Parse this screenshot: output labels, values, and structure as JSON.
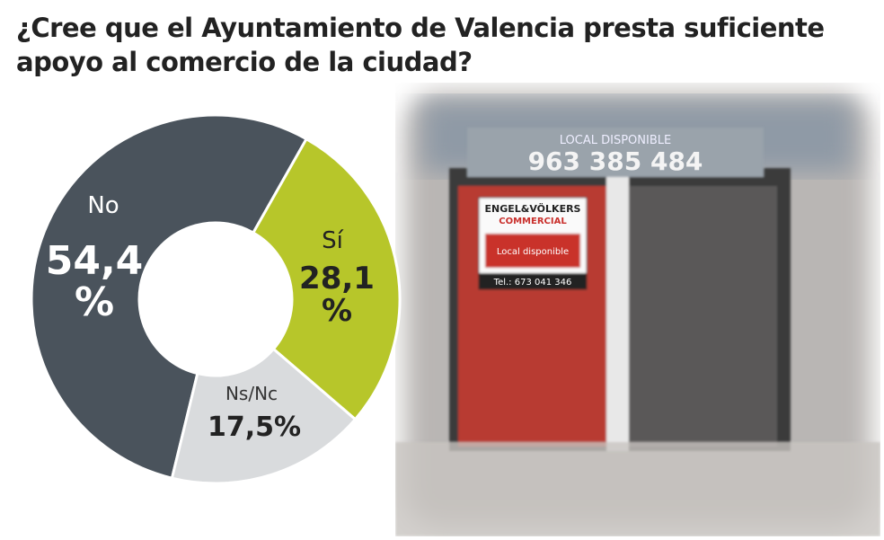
{
  "chart_data": {
    "type": "pie",
    "donut": true,
    "title": "¿Cree que el Ayuntamiento de Valencia presta suficiente apoyo al comercio de la ciudad?",
    "categories": [
      "No",
      "Sí",
      "Ns/Nc"
    ],
    "values": [
      54.4,
      28.1,
      17.5
    ],
    "value_labels": [
      "54,4 %",
      "28,1 %",
      "17,5%"
    ],
    "colors": [
      "#4a535c",
      "#b7c62a",
      "#d9dbdd"
    ]
  },
  "photo": {
    "sign_top": "LOCAL DISPONIBLE",
    "phone": "963 385 484",
    "brand": "ENGEL&VÖLKERS",
    "brand_sub": "COMMERCIAL",
    "poster": "Local disponible",
    "tel": "Tel.: 673 041 346"
  }
}
